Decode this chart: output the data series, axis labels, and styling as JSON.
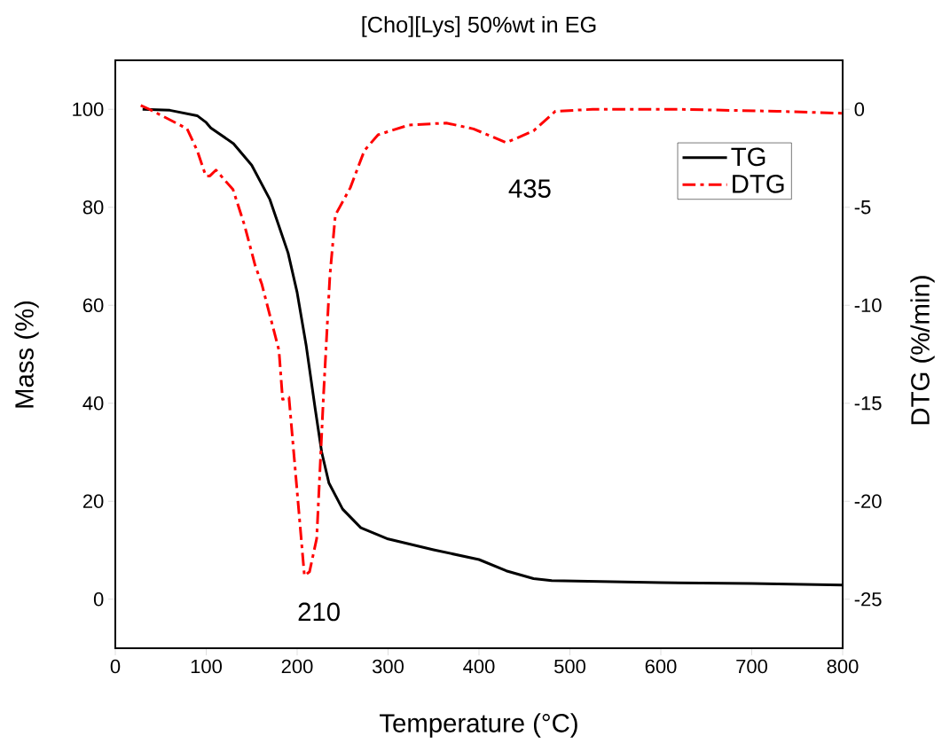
{
  "chart_data": {
    "type": "line",
    "title": "[Cho][Lys] 50%wt in EG",
    "xlabel": "Temperature (°C)",
    "ylabel": "Mass (%)",
    "y2label": "DTG (%/min)",
    "xlim": [
      0,
      800
    ],
    "xticks": [
      0,
      100,
      200,
      300,
      400,
      500,
      600,
      700,
      800
    ],
    "ylim": [
      -10,
      110
    ],
    "yticks": [
      0,
      20,
      40,
      60,
      80,
      100
    ],
    "y2lim": [
      -27.5,
      2.5
    ],
    "y2ticks": [
      -25,
      -20,
      -15,
      -10,
      -5,
      0
    ],
    "legend": "top right",
    "grid": false,
    "marker": "none",
    "series": [
      {
        "name": "TG",
        "color": "#000000",
        "line_style": "solid",
        "x": [
          30,
          60,
          90,
          100,
          105,
          130,
          150,
          170,
          190,
          200,
          210,
          220,
          227,
          235,
          250,
          270,
          300,
          350,
          400,
          430,
          460,
          480,
          600,
          700,
          800
        ],
        "values": [
          100.0,
          99.8,
          98.7,
          97.3,
          96.2,
          93,
          88.6,
          81.6,
          70.7,
          62.6,
          51.7,
          38.7,
          30,
          23.7,
          18.4,
          14.6,
          12.3,
          10.1,
          8.1,
          5.8,
          4.2,
          3.8,
          3.4,
          3.2,
          2.9
        ]
      },
      {
        "name": "DTG",
        "color": "#ff0000",
        "line_style": "dashdot",
        "axis": "y2",
        "x": [
          28,
          37.5,
          71,
          79,
          90,
          99.5,
          104,
          110.7,
          129.5,
          142,
          154,
          161,
          180,
          184,
          191,
          208,
          213.6,
          221.5,
          229,
          236,
          242,
          258.5,
          274,
          289,
          323,
          364,
          394,
          430,
          460,
          484,
          525,
          619,
          728,
          799
        ],
        "values": [
          0.2,
          0,
          -0.8,
          -1.0,
          -2.1,
          -3.4,
          -3.4,
          -3.1,
          -4.1,
          -5.9,
          -8.0,
          -8.9,
          -12.3,
          -14.8,
          -14.7,
          -23.8,
          -23.6,
          -21.9,
          -14.6,
          -8.5,
          -5.4,
          -4.0,
          -2.1,
          -1.3,
          -0.8,
          -0.7,
          -1.0,
          -1.7,
          -1.1,
          -0.1,
          0,
          0,
          -0.1,
          -0.2
        ]
      }
    ],
    "annotations": [
      "210",
      "435"
    ]
  }
}
